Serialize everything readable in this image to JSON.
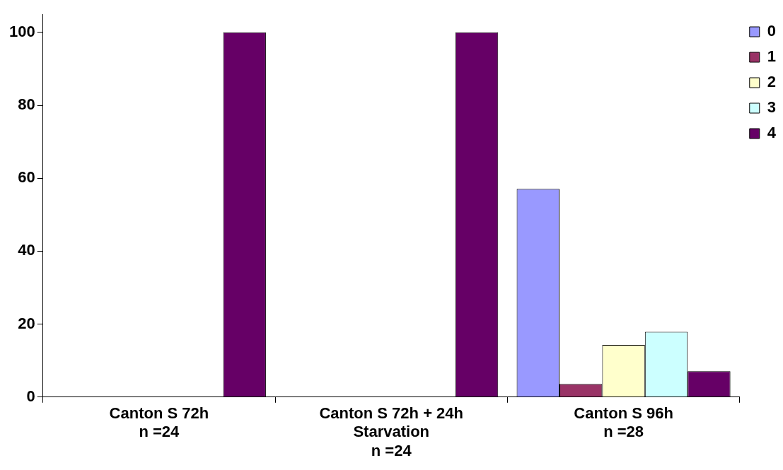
{
  "chart_data": {
    "type": "bar",
    "categories": [
      "Canton S 72h\nn =24",
      "Canton S 72h + 24h\nStarvation\nn =24",
      "Canton S 96h\nn =28"
    ],
    "series": [
      {
        "name": "0",
        "color": "#9999ff",
        "values": [
          0,
          0,
          57.1
        ]
      },
      {
        "name": "1",
        "color": "#993366",
        "values": [
          0,
          0,
          3.6
        ]
      },
      {
        "name": "2",
        "color": "#ffffcc",
        "values": [
          0,
          0,
          14.3
        ]
      },
      {
        "name": "3",
        "color": "#ccffff",
        "values": [
          0,
          0,
          17.9
        ]
      },
      {
        "name": "4",
        "color": "#660066",
        "values": [
          100,
          100,
          7.1
        ]
      }
    ],
    "ylim": [
      0,
      105
    ],
    "yticks": [
      0,
      20,
      40,
      60,
      80,
      100
    ],
    "grid": false,
    "legend": "top right"
  }
}
